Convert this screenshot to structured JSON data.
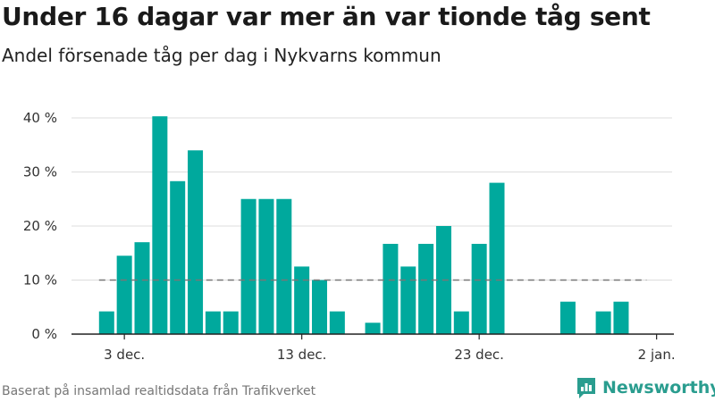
{
  "header": {
    "title": "Under 16 dagar var mer än var tionde tåg sent",
    "subtitle": "Andel försenade tåg per dag i Nykvarns kommun"
  },
  "footer": {
    "source": "Baserat på insamlad realtidsdata från Trafikverket",
    "brand": "Newsworthy"
  },
  "colors": {
    "bar": "#00a99d",
    "grid": "#dddddd",
    "reference_line": "#777777",
    "brand": "#2a9d8f"
  },
  "icons": {
    "brand_logo": "bar-chart-badge-icon"
  },
  "chart_data": {
    "type": "bar",
    "x_unit": "day",
    "x": [
      "2023-12-02",
      "2023-12-03",
      "2023-12-04",
      "2023-12-05",
      "2023-12-06",
      "2023-12-07",
      "2023-12-08",
      "2023-12-09",
      "2023-12-10",
      "2023-12-11",
      "2023-12-12",
      "2023-12-13",
      "2023-12-14",
      "2023-12-15",
      "2023-12-16",
      "2023-12-17",
      "2023-12-18",
      "2023-12-19",
      "2023-12-20",
      "2023-12-21",
      "2023-12-22",
      "2023-12-23",
      "2023-12-24",
      "2023-12-25",
      "2023-12-26",
      "2023-12-27",
      "2023-12-28",
      "2023-12-29",
      "2023-12-30",
      "2023-12-31",
      "2024-01-01"
    ],
    "values": [
      4.2,
      14.5,
      17,
      40.3,
      28.3,
      34,
      4.2,
      4.2,
      25,
      25,
      25,
      12.5,
      10,
      4.2,
      0,
      2.1,
      16.7,
      12.5,
      16.7,
      20,
      4.2,
      16.7,
      28,
      0,
      0,
      0,
      6,
      0,
      4.2,
      6,
      0
    ],
    "reference_line": {
      "value": 10,
      "style": "dashed"
    },
    "ylim": [
      0,
      40
    ],
    "yticks": [
      0,
      10,
      20,
      30,
      40
    ],
    "ytick_labels": [
      "0 %",
      "10 %",
      "20 %",
      "30 %",
      "40 %"
    ],
    "xticks": [
      "2023-12-03",
      "2023-12-13",
      "2023-12-23",
      "2024-01-02"
    ],
    "xtick_labels": [
      "3 dec.",
      "13 dec.",
      "23 dec.",
      "2 jan."
    ],
    "grid": true,
    "xlabel": "",
    "ylabel": ""
  }
}
